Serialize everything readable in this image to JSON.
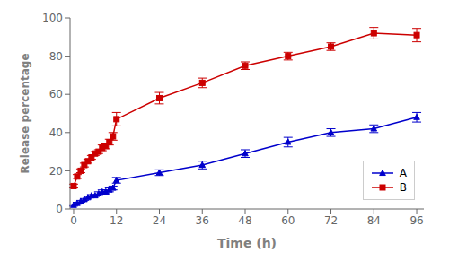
{
  "chart_data": {
    "type": "line",
    "xlabel": "Time (h)",
    "ylabel": "Release percentage",
    "x": [
      0,
      1,
      2,
      3,
      4,
      5,
      6,
      7,
      8,
      9,
      10,
      11,
      12,
      24,
      36,
      48,
      60,
      72,
      84,
      96
    ],
    "series": [
      {
        "name": "A",
        "color": "#0000cc",
        "marker": "triangle",
        "values": [
          2,
          3,
          4,
          5,
          6,
          7,
          7,
          8,
          9,
          9,
          10,
          11,
          15,
          19,
          23,
          29,
          35,
          40,
          42,
          48
        ],
        "yerr": [
          0.5,
          0.5,
          0.5,
          0.5,
          0.5,
          0.5,
          0.5,
          1.0,
          1.0,
          1.0,
          1.0,
          1.0,
          1.5,
          1.5,
          2.0,
          2.0,
          2.5,
          2.0,
          2.0,
          2.5
        ]
      },
      {
        "name": "B",
        "color": "#cc0000",
        "marker": "square",
        "values": [
          12,
          17,
          20,
          23,
          25,
          27,
          29,
          30,
          32,
          33,
          35,
          38,
          47,
          58,
          66,
          75,
          80,
          85,
          92,
          91
        ],
        "yerr": [
          1.0,
          1.0,
          1.0,
          1.0,
          1.0,
          1.0,
          1.0,
          1.0,
          1.5,
          1.5,
          1.5,
          2.0,
          3.5,
          3.0,
          2.5,
          2.0,
          2.0,
          2.0,
          3.0,
          3.5
        ]
      }
    ],
    "xlim": [
      -1,
      98
    ],
    "ylim": [
      0,
      100
    ],
    "xticks": [
      0,
      12,
      24,
      36,
      48,
      60,
      72,
      84,
      96
    ],
    "yticks": [
      0,
      20,
      40,
      60,
      80,
      100
    ],
    "grid": false,
    "legend": "lower right"
  }
}
